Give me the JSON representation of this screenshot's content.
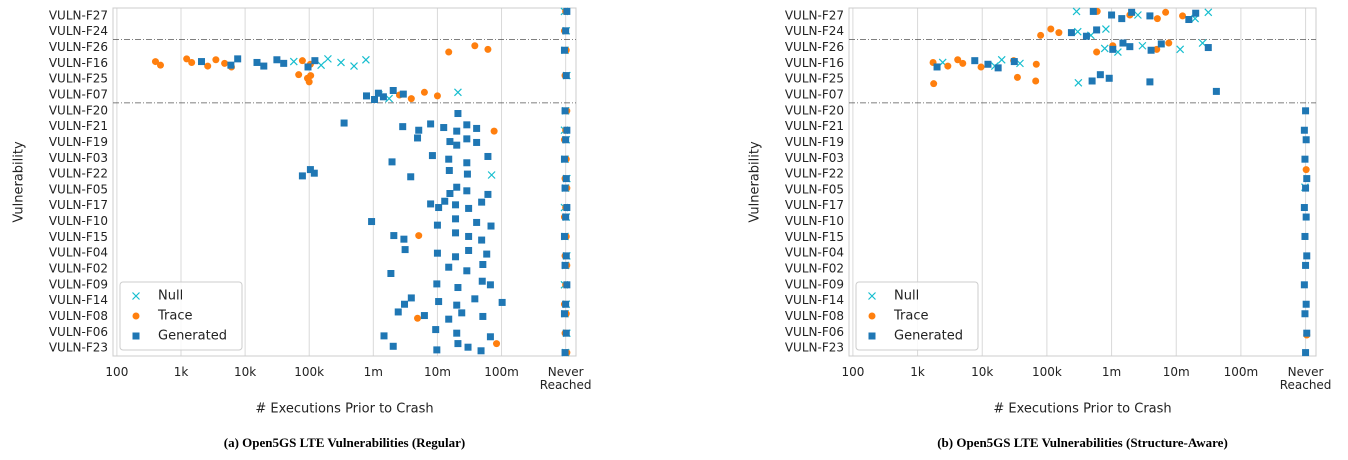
{
  "chart_data": [
    {
      "type": "scatter",
      "caption": "(a) Open5GS LTE Vulnerabilities (Regular)",
      "x_label": "# Executions Prior to Crash",
      "y_label": "Vulnerability",
      "categories": [
        "VULN-F27",
        "VULN-F24",
        "VULN-F26",
        "VULN-F16",
        "VULN-F25",
        "VULN-F07",
        "VULN-F20",
        "VULN-F21",
        "VULN-F19",
        "VULN-F03",
        "VULN-F22",
        "VULN-F05",
        "VULN-F17",
        "VULN-F10",
        "VULN-F15",
        "VULN-F04",
        "VULN-F02",
        "VULN-F09",
        "VULN-F14",
        "VULN-F08",
        "VULN-F06",
        "VULN-F23"
      ],
      "separators_after": [
        "VULN-F24",
        "VULN-F07"
      ],
      "xscale": "log",
      "xlim": [
        87,
        1450000000
      ],
      "xticks": [
        100,
        {
          "value": 1000,
          "label": "1k"
        },
        {
          "value": 10000,
          "label": "10k"
        },
        {
          "value": 100000,
          "label": "100k"
        },
        {
          "value": 1000000,
          "label": "1m"
        },
        {
          "value": 10000000,
          "label": "10m"
        },
        {
          "value": 100000000,
          "label": "100m"
        },
        {
          "value": 1000000000,
          "label": "Never Reached"
        }
      ],
      "grid": true,
      "legend": "lower left",
      "series": [
        {
          "name": "Null",
          "color": "#17becf",
          "marker": "x",
          "x": [
            1000000000,
            1000000000,
            1000000000,
            1000000000,
            1000000000,
            1000000000,
            1000000000,
            1000000000,
            1000000000,
            1000000000,
            1000000000,
            1000000000,
            1000000000,
            1000000000,
            1000000000,
            1000000000,
            1000000000,
            1000000000,
            1000000000,
            1000000000,
            60000,
            150000,
            200000,
            300000,
            500000,
            800000,
            1200000,
            1800000,
            20000000,
            70000000
          ],
          "y": [
            "VULN-F27",
            "VULN-F24",
            "VULN-F26",
            "VULN-F25",
            "VULN-F20",
            "VULN-F21",
            "VULN-F19",
            "VULN-F03",
            "VULN-F22",
            "VULN-F05",
            "VULN-F17",
            "VULN-F10",
            "VULN-F15",
            "VULN-F04",
            "VULN-F02",
            "VULN-F09",
            "VULN-F14",
            "VULN-F08",
            "VULN-F06",
            "VULN-F23",
            "VULN-F16",
            "VULN-F16",
            "VULN-F16",
            "VULN-F16",
            "VULN-F16",
            "VULN-F16",
            "VULN-F07",
            "VULN-F07",
            "VULN-F07",
            "VULN-F22"
          ]
        },
        {
          "name": "Trace",
          "color": "#ff7f0e",
          "marker": "circle",
          "x": [
            1000000000,
            1000000000,
            1000000000,
            1000000000,
            1000000000,
            1000000000,
            1000000000,
            1000000000,
            1000000000,
            1000000000,
            1000000000,
            1000000000,
            1000000000,
            1000000000,
            1000000000,
            1000000000,
            1000000000,
            1000000000,
            1000000000,
            1000000000,
            400,
            500,
            1200,
            1500,
            2500,
            3500,
            5000,
            6000,
            80000,
            100000,
            15000000,
            40000000,
            60000000,
            70000,
            90000,
            100000,
            110000,
            2500000,
            4000000,
            6000000,
            10000000,
            80000000,
            5000000,
            5000000,
            80000000
          ],
          "y": [
            "VULN-F27",
            "VULN-F24",
            "VULN-F26",
            "VULN-F25",
            "VULN-F20",
            "VULN-F21",
            "VULN-F19",
            "VULN-F03",
            "VULN-F22",
            "VULN-F05",
            "VULN-F17",
            "VULN-F10",
            "VULN-F15",
            "VULN-F04",
            "VULN-F02",
            "VULN-F09",
            "VULN-F14",
            "VULN-F08",
            "VULN-F06",
            "VULN-F23",
            "VULN-F16",
            "VULN-F16",
            "VULN-F16",
            "VULN-F16",
            "VULN-F16",
            "VULN-F16",
            "VULN-F16",
            "VULN-F16",
            "VULN-F16",
            "VULN-F16",
            "VULN-F26",
            "VULN-F26",
            "VULN-F26",
            "VULN-F25",
            "VULN-F25",
            "VULN-F25",
            "VULN-F25",
            "VULN-F07",
            "VULN-F07",
            "VULN-F07",
            "VULN-F07",
            "VULN-F21",
            "VULN-F15",
            "VULN-F08",
            "VULN-F23"
          ]
        },
        {
          "name": "Generated",
          "color": "#1f77b4",
          "marker": "square",
          "x": [
            1000000000,
            1000000000,
            1000000000,
            1000000000,
            1000000000,
            1000000000,
            1000000000,
            1000000000,
            1000000000,
            1000000000,
            1000000000,
            1000000000,
            1000000000,
            1000000000,
            1000000000,
            1000000000,
            1000000000,
            1000000000,
            1000000000,
            1000000000,
            2000,
            6000,
            8000,
            15000,
            20000,
            30000,
            40000,
            100000,
            120000,
            800000,
            1000000,
            1200000,
            1500000,
            2000000,
            3000000,
            20000000,
            350000,
            3000000,
            5000000,
            8000000,
            12000000,
            20000000,
            30000000,
            40000000,
            5000000,
            15000000,
            20000000,
            30000000,
            40000000,
            2000000,
            8000000,
            15000000,
            30000000,
            60000000,
            80000,
            100000,
            120000,
            4000000,
            15000000,
            30000000,
            15000000,
            20000000,
            30000000,
            60000000,
            8000000,
            10000000,
            13000000,
            20000000,
            30000000,
            50000000,
            900000,
            10000000,
            20000000,
            40000000,
            70000000,
            2000000,
            3000000,
            20000000,
            30000000,
            50000000,
            3000000,
            10000000,
            20000000,
            30000000,
            60000000,
            1800000,
            15000000,
            30000000,
            50000000,
            10000000,
            20000000,
            50000000,
            70000000,
            3000000,
            4000000,
            10000000,
            20000000,
            40000000,
            100000000,
            2500000,
            6000000,
            15000000,
            25000000,
            50000000,
            1500000,
            9000000,
            20000000,
            70000000,
            2000000,
            10000000,
            20000000,
            30000000,
            50000000
          ],
          "y": [
            "VULN-F27",
            "VULN-F24",
            "VULN-F26",
            "VULN-F25",
            "VULN-F20",
            "VULN-F21",
            "VULN-F19",
            "VULN-F03",
            "VULN-F22",
            "VULN-F05",
            "VULN-F17",
            "VULN-F10",
            "VULN-F15",
            "VULN-F04",
            "VULN-F02",
            "VULN-F09",
            "VULN-F14",
            "VULN-F08",
            "VULN-F06",
            "VULN-F23",
            "VULN-F16",
            "VULN-F16",
            "VULN-F16",
            "VULN-F16",
            "VULN-F16",
            "VULN-F16",
            "VULN-F16",
            "VULN-F16",
            "VULN-F16",
            "VULN-F07",
            "VULN-F07",
            "VULN-F07",
            "VULN-F07",
            "VULN-F07",
            "VULN-F07",
            "VULN-F20",
            "VULN-F21",
            "VULN-F21",
            "VULN-F21",
            "VULN-F21",
            "VULN-F21",
            "VULN-F21",
            "VULN-F21",
            "VULN-F21",
            "VULN-F19",
            "VULN-F19",
            "VULN-F19",
            "VULN-F19",
            "VULN-F19",
            "VULN-F03",
            "VULN-F03",
            "VULN-F03",
            "VULN-F03",
            "VULN-F03",
            "VULN-F22",
            "VULN-F22",
            "VULN-F22",
            "VULN-F22",
            "VULN-F22",
            "VULN-F22",
            "VULN-F05",
            "VULN-F05",
            "VULN-F05",
            "VULN-F05",
            "VULN-F17",
            "VULN-F17",
            "VULN-F17",
            "VULN-F17",
            "VULN-F17",
            "VULN-F17",
            "VULN-F10",
            "VULN-F10",
            "VULN-F10",
            "VULN-F10",
            "VULN-F10",
            "VULN-F15",
            "VULN-F15",
            "VULN-F15",
            "VULN-F15",
            "VULN-F15",
            "VULN-F04",
            "VULN-F04",
            "VULN-F04",
            "VULN-F04",
            "VULN-F04",
            "VULN-F02",
            "VULN-F02",
            "VULN-F02",
            "VULN-F02",
            "VULN-F09",
            "VULN-F09",
            "VULN-F09",
            "VULN-F09",
            "VULN-F14",
            "VULN-F14",
            "VULN-F14",
            "VULN-F14",
            "VULN-F14",
            "VULN-F14",
            "VULN-F08",
            "VULN-F08",
            "VULN-F08",
            "VULN-F08",
            "VULN-F08",
            "VULN-F06",
            "VULN-F06",
            "VULN-F06",
            "VULN-F06",
            "VULN-F23",
            "VULN-F23",
            "VULN-F23",
            "VULN-F23",
            "VULN-F23"
          ]
        }
      ]
    },
    {
      "type": "scatter",
      "caption": "(b) Open5GS LTE Vulnerabilities (Structure-Aware)",
      "x_label": "# Executions Prior to Crash",
      "y_label": "Vulnerability",
      "categories": [
        "VULN-F27",
        "VULN-F24",
        "VULN-F26",
        "VULN-F16",
        "VULN-F25",
        "VULN-F07",
        "VULN-F20",
        "VULN-F21",
        "VULN-F19",
        "VULN-F03",
        "VULN-F22",
        "VULN-F05",
        "VULN-F17",
        "VULN-F10",
        "VULN-F15",
        "VULN-F04",
        "VULN-F02",
        "VULN-F09",
        "VULN-F14",
        "VULN-F08",
        "VULN-F06",
        "VULN-F23"
      ],
      "separators_after": [
        "VULN-F24",
        "VULN-F07"
      ],
      "xscale": "log",
      "xlim": [
        87,
        1450000000
      ],
      "xticks": [
        100,
        {
          "value": 1000,
          "label": "1k"
        },
        {
          "value": 10000,
          "label": "10k"
        },
        {
          "value": 100000,
          "label": "100k"
        },
        {
          "value": 1000000,
          "label": "1m"
        },
        {
          "value": 10000000,
          "label": "10m"
        },
        {
          "value": 100000000,
          "label": "100m"
        },
        {
          "value": 1000000000,
          "label": "Never Reached"
        }
      ],
      "grid": true,
      "legend": "lower left",
      "series": [
        {
          "name": "Null",
          "color": "#17becf",
          "marker": "x",
          "x": [
            300000,
            2500000,
            20000000,
            30000000,
            300000,
            500000,
            800000,
            800000,
            1200000,
            3000000,
            12000000,
            25000000,
            2500,
            15000,
            20000,
            40000,
            300000,
            1000000000
          ],
          "y": [
            "VULN-F27",
            "VULN-F27",
            "VULN-F27",
            "VULN-F27",
            "VULN-F24",
            "VULN-F24",
            "VULN-F24",
            "VULN-F26",
            "VULN-F26",
            "VULN-F26",
            "VULN-F26",
            "VULN-F26",
            "VULN-F16",
            "VULN-F16",
            "VULN-F16",
            "VULN-F16",
            "VULN-F25",
            "VULN-F05"
          ]
        },
        {
          "name": "Trace",
          "color": "#ff7f0e",
          "marker": "circle",
          "x": [
            600000,
            2000000,
            5000000,
            7000000,
            12000000,
            80000,
            120000,
            150000,
            600000,
            1000000,
            5000000,
            8000000,
            1700,
            3000,
            4000,
            5000,
            10000,
            30000,
            70000,
            1700,
            35000,
            70000,
            1000000000,
            1000000000,
            1000000000
          ],
          "y": [
            "VULN-F27",
            "VULN-F27",
            "VULN-F27",
            "VULN-F27",
            "VULN-F27",
            "VULN-F24",
            "VULN-F24",
            "VULN-F24",
            "VULN-F26",
            "VULN-F26",
            "VULN-F26",
            "VULN-F26",
            "VULN-F16",
            "VULN-F16",
            "VULN-F16",
            "VULN-F16",
            "VULN-F16",
            "VULN-F16",
            "VULN-F16",
            "VULN-F25",
            "VULN-F25",
            "VULN-F25",
            "VULN-F22",
            "VULN-F15",
            "VULN-F06"
          ]
        },
        {
          "name": "Generated",
          "color": "#1f77b4",
          "marker": "square",
          "x": [
            500000,
            1000000,
            1500000,
            2000000,
            4000000,
            15000000,
            20000000,
            250000,
            400000,
            600000,
            1000000,
            1500000,
            2000000,
            4000000,
            6000000,
            30000000,
            2000,
            8000,
            12000,
            18000,
            30000,
            500000,
            700000,
            900000,
            4000000,
            40000000,
            1000000000,
            1000000000,
            1000000000,
            1000000000,
            1000000000,
            1000000000,
            1000000000,
            1000000000,
            1000000000,
            1000000000,
            1000000000,
            1000000000,
            1000000000,
            1000000000,
            1000000000,
            1000000000
          ],
          "y": [
            "VULN-F27",
            "VULN-F27",
            "VULN-F27",
            "VULN-F27",
            "VULN-F27",
            "VULN-F27",
            "VULN-F27",
            "VULN-F24",
            "VULN-F24",
            "VULN-F24",
            "VULN-F26",
            "VULN-F26",
            "VULN-F26",
            "VULN-F26",
            "VULN-F26",
            "VULN-F26",
            "VULN-F16",
            "VULN-F16",
            "VULN-F16",
            "VULN-F16",
            "VULN-F16",
            "VULN-F25",
            "VULN-F25",
            "VULN-F25",
            "VULN-F25",
            "VULN-F07",
            "VULN-F20",
            "VULN-F21",
            "VULN-F19",
            "VULN-F03",
            "VULN-F22",
            "VULN-F05",
            "VULN-F17",
            "VULN-F10",
            "VULN-F15",
            "VULN-F04",
            "VULN-F02",
            "VULN-F09",
            "VULN-F14",
            "VULN-F08",
            "VULN-F06",
            "VULN-F23"
          ]
        }
      ]
    }
  ]
}
